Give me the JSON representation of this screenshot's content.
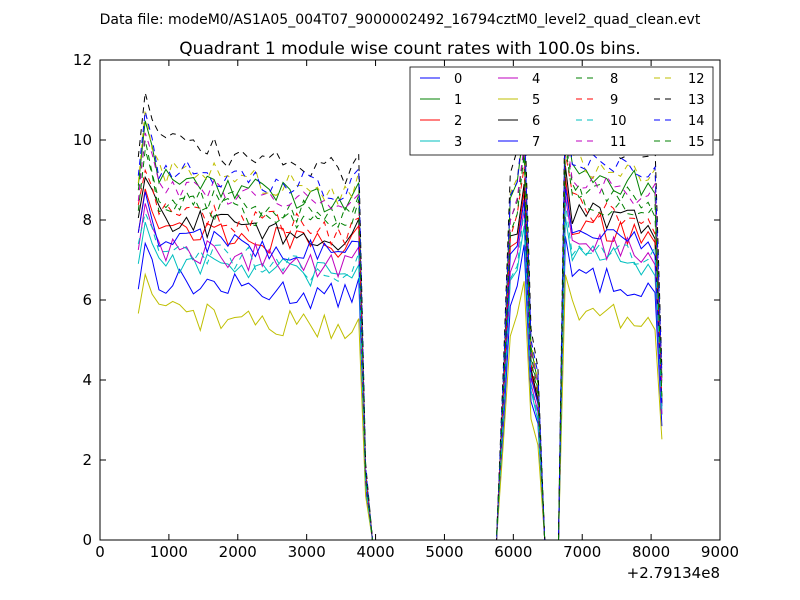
{
  "chart_data": {
    "type": "line",
    "suptitle": "Data file: modeM0/AS1A05_004T07_9000002492_16794cztM0_level2_quad_clean.evt",
    "title": "Quadrant 1 module wise count rates with 100.0s bins.",
    "xlabel": "",
    "ylabel": "",
    "x_offset_label": "+2.79134e8",
    "xlim": [
      0,
      9000
    ],
    "ylim": [
      0,
      12
    ],
    "xticks": [
      0,
      1000,
      2000,
      3000,
      4000,
      5000,
      6000,
      7000,
      8000,
      9000
    ],
    "yticks": [
      0,
      2,
      4,
      6,
      8,
      10,
      12
    ],
    "x": [
      556,
      656,
      756,
      856,
      956,
      1056,
      1156,
      1256,
      1356,
      1456,
      1556,
      1656,
      1756,
      1856,
      1956,
      2056,
      2156,
      2256,
      2356,
      2456,
      2556,
      2656,
      2756,
      2856,
      2956,
      3056,
      3156,
      3256,
      3356,
      3456,
      3556,
      3656,
      3756,
      3856,
      3956,
      4056,
      4156,
      4256,
      4356,
      4456,
      4556,
      4656,
      4756,
      4856,
      4956,
      5056,
      5156,
      5256,
      5356,
      5456,
      5556,
      5656,
      5756,
      5856,
      5956,
      6056,
      6156,
      6256,
      6356,
      6456,
      6556,
      6656,
      6756,
      6856,
      6956,
      7056,
      7156,
      7256,
      7356,
      7456,
      7556,
      7656,
      7756,
      7856,
      7956,
      8056,
      8156
    ],
    "baseline": {
      "segment1_end_index": 33,
      "gap_zero_range": [
        3956,
        5756
      ],
      "peak_index": 56,
      "dip_zero_range": [
        6456,
        6656
      ],
      "end_value_factor": 0.45
    },
    "legend_position": "upper-right",
    "legend_columns": 4,
    "series": [
      {
        "name": "0",
        "color": "#0000ff",
        "dash": "solid",
        "level": 6.3
      },
      {
        "name": "1",
        "color": "#008000",
        "dash": "solid",
        "level": 8.8
      },
      {
        "name": "2",
        "color": "#ff0000",
        "dash": "solid",
        "level": 7.6
      },
      {
        "name": "3",
        "color": "#00bfbf",
        "dash": "solid",
        "level": 6.8
      },
      {
        "name": "4",
        "color": "#bf00bf",
        "dash": "solid",
        "level": 7.1
      },
      {
        "name": "5",
        "color": "#bfbf00",
        "dash": "solid",
        "level": 5.5
      },
      {
        "name": "6",
        "color": "#000000",
        "dash": "solid",
        "level": 7.8
      },
      {
        "name": "7",
        "color": "#0000ff",
        "dash": "solid",
        "level": 7.4
      },
      {
        "name": "8",
        "color": "#008000",
        "dash": "dashed",
        "level": 8.4
      },
      {
        "name": "9",
        "color": "#ff0000",
        "dash": "dashed",
        "level": 8.0
      },
      {
        "name": "10",
        "color": "#00bfbf",
        "dash": "dashed",
        "level": 7.0
      },
      {
        "name": "11",
        "color": "#bf00bf",
        "dash": "dashed",
        "level": 8.6
      },
      {
        "name": "12",
        "color": "#bfbf00",
        "dash": "dashed",
        "level": 9.0
      },
      {
        "name": "13",
        "color": "#000000",
        "dash": "dashed",
        "level": 9.6
      },
      {
        "name": "14",
        "color": "#0000ff",
        "dash": "dashed",
        "level": 9.1
      },
      {
        "name": "15",
        "color": "#008000",
        "dash": "dashed",
        "level": 8.2
      }
    ]
  }
}
